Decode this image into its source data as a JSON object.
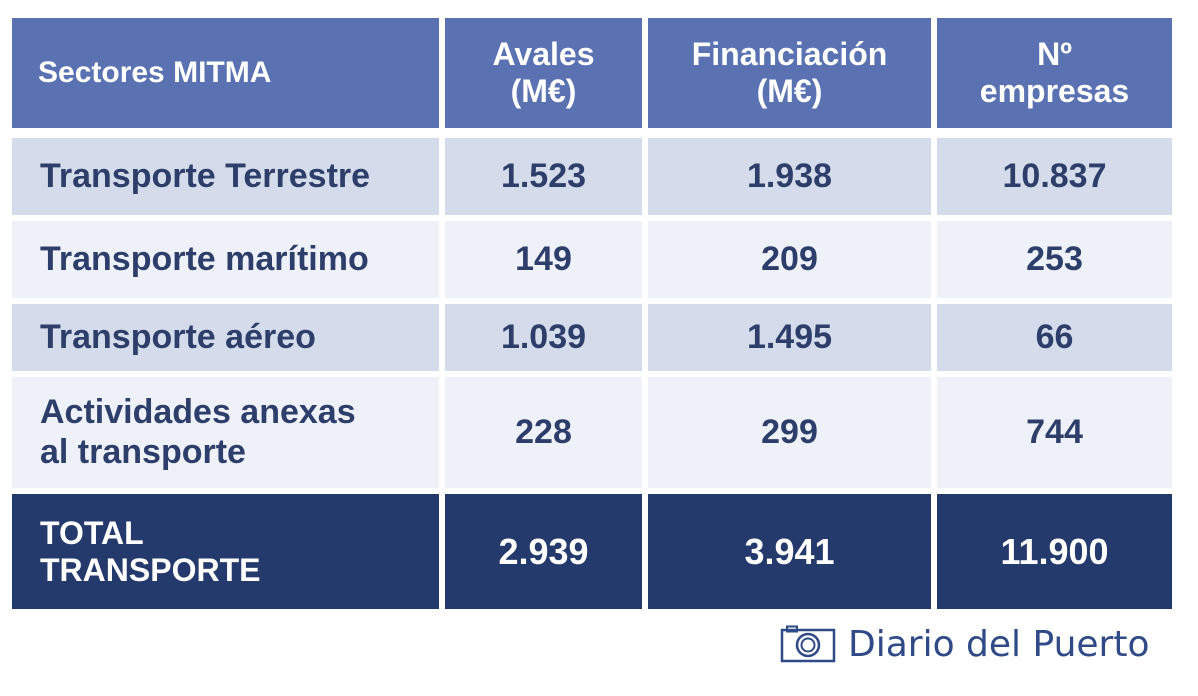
{
  "chart_data": {
    "type": "table",
    "columns": [
      "Sectores MITMA",
      "Avales\n(M€)",
      "Financiación\n(M€)",
      "Nº\nempresas"
    ],
    "rows": [
      [
        "Transporte Terrestre",
        "1.523",
        "1.938",
        "10.837"
      ],
      [
        "Transporte marítimo",
        "149",
        "209",
        "253"
      ],
      [
        "Transporte aéreo",
        "1.039",
        "1.495",
        "66"
      ],
      [
        "Actividades anexas\nal transporte",
        "228",
        "299",
        "744"
      ]
    ],
    "total": [
      "TOTAL\nTRANSPORTE",
      "2.939",
      "3.941",
      "11.900"
    ],
    "colors": {
      "header": "#5a72b2",
      "total": "#24396c",
      "row_dark": "#d4dbea",
      "row_light": "#eef1f8",
      "body_text": "#2d3e6b"
    }
  },
  "credit": {
    "icon": "camera-icon",
    "text": "Diario del Puerto"
  }
}
